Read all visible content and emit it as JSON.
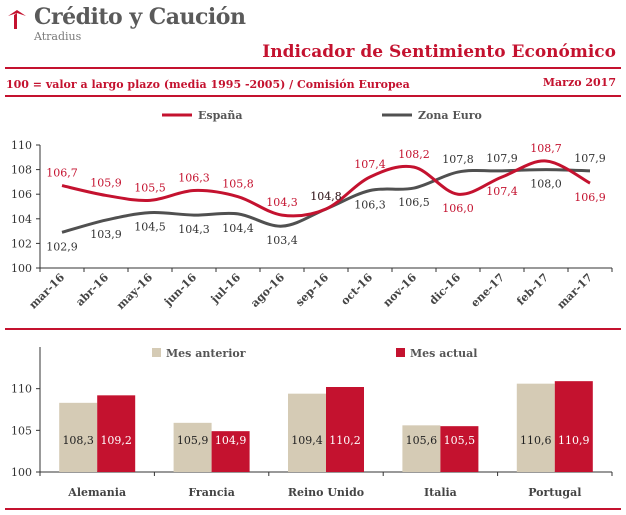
{
  "header": {
    "brand": "Crédito y Caución",
    "brand_sub": "Atradius",
    "title": "Indicador de Sentimiento Económico",
    "subtitle": "100 = valor a largo plazo (media 1995 -2005) / Comisión Europea",
    "date": "Marzo 2017"
  },
  "colors": {
    "accent": "#c4122f",
    "grey": "#505050",
    "beige": "#d5cbb5",
    "axis": "#333333"
  },
  "chart_data": [
    {
      "type": "line",
      "categories": [
        "mar-16",
        "abr-16",
        "may-16",
        "jun-16",
        "jul-16",
        "ago-16",
        "sep-16",
        "oct-16",
        "nov-16",
        "dic-16",
        "ene-17",
        "feb-17",
        "mar-17"
      ],
      "ylim": [
        100,
        110
      ],
      "yticks": [
        100,
        102,
        104,
        106,
        108,
        110
      ],
      "legend_position": "top",
      "series": [
        {
          "name": "España",
          "color": "#c4122f",
          "values": [
            106.7,
            105.9,
            105.5,
            106.3,
            105.8,
            104.3,
            104.8,
            107.4,
            108.2,
            106.0,
            107.4,
            108.7,
            106.9
          ],
          "labels": [
            "106,7",
            "105,9",
            "105,5",
            "106,3",
            "105,8",
            "104,3",
            "104,8",
            "107,4",
            "108,2",
            "106,0",
            "107,4",
            "108,7",
            "106,9"
          ]
        },
        {
          "name": "Zona Euro",
          "color": "#505050",
          "values": [
            102.9,
            103.9,
            104.5,
            104.3,
            104.4,
            103.4,
            104.8,
            106.3,
            106.5,
            107.8,
            107.9,
            108.0,
            107.9
          ],
          "labels": [
            "102,9",
            "103,9",
            "104,5",
            "104,3",
            "104,4",
            "103,4",
            "104,8",
            "106,3",
            "106,5",
            "107,8",
            "107,9",
            "108,0",
            "107,9"
          ]
        }
      ]
    },
    {
      "type": "bar",
      "categories": [
        "Alemania",
        "Francia",
        "Reino Unido",
        "Italia",
        "Portugal"
      ],
      "ylim": [
        100,
        115
      ],
      "yticks": [
        100,
        105,
        110
      ],
      "legend_position": "top",
      "series": [
        {
          "name": "Mes anterior",
          "color": "#d5cbb5",
          "values": [
            108.3,
            105.9,
            109.4,
            105.6,
            110.6
          ],
          "labels": [
            "108,3",
            "105,9",
            "109,4",
            "105,6",
            "110,6"
          ]
        },
        {
          "name": "Mes actual",
          "color": "#c4122f",
          "values": [
            109.2,
            104.9,
            110.2,
            105.5,
            110.9
          ],
          "labels": [
            "109,2",
            "104,9",
            "110,2",
            "105,5",
            "110,9"
          ]
        }
      ]
    }
  ]
}
